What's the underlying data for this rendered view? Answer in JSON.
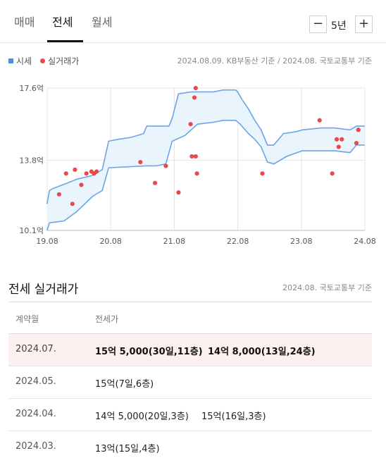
{
  "tabs": [
    {
      "label": "매매",
      "active": false
    },
    {
      "label": "전세",
      "active": true
    },
    {
      "label": "월세",
      "active": false
    }
  ],
  "period": {
    "minus": "−",
    "value": "5년",
    "plus": "+"
  },
  "legend": {
    "market": "시세",
    "actual": "실거래가"
  },
  "chart_source": "2024.08.09. KB부동산 기준 / 2024.08. 국토교통부 기준",
  "colors": {
    "band_line": "#6aa5e8",
    "band_fill": "#eaf4fc",
    "dot": "#e84a4a",
    "highlight_row": "#fdf0f0"
  },
  "chart_data": {
    "type": "line",
    "y_ticks": [
      "17.6억",
      "13.8억",
      "10.1억"
    ],
    "y_tick_values": [
      17.6,
      13.8,
      10.1
    ],
    "ylim": [
      10.1,
      17.6
    ],
    "x_ticks": [
      "19.08",
      "20.08",
      "21.08",
      "22.08",
      "23.08",
      "24.08"
    ],
    "x_tick_values": [
      2019.583,
      2020.583,
      2021.583,
      2022.583,
      2023.583,
      2024.583
    ],
    "xlim": [
      2019.583,
      2024.583
    ],
    "series": [
      {
        "role": "upper",
        "points": [
          [
            2019.58,
            11.5
          ],
          [
            2019.62,
            12.2
          ],
          [
            2019.67,
            12.3
          ],
          [
            2019.9,
            12.6
          ],
          [
            2020.05,
            12.8
          ],
          [
            2020.3,
            13.0
          ],
          [
            2020.45,
            13.3
          ],
          [
            2020.55,
            14.8
          ],
          [
            2020.7,
            14.9
          ],
          [
            2020.9,
            15.0
          ],
          [
            2021.1,
            15.2
          ],
          [
            2021.15,
            15.6
          ],
          [
            2021.5,
            15.6
          ],
          [
            2021.55,
            16.0
          ],
          [
            2021.65,
            17.3
          ],
          [
            2021.85,
            17.4
          ],
          [
            2022.0,
            17.4
          ],
          [
            2022.2,
            17.4
          ],
          [
            2022.35,
            17.5
          ],
          [
            2022.55,
            17.5
          ],
          [
            2022.58,
            17.4
          ],
          [
            2022.65,
            17.0
          ],
          [
            2022.75,
            16.5
          ],
          [
            2022.85,
            15.9
          ],
          [
            2022.95,
            15.4
          ],
          [
            2023.05,
            14.6
          ],
          [
            2023.15,
            14.6
          ],
          [
            2023.3,
            15.2
          ],
          [
            2023.5,
            15.3
          ],
          [
            2023.6,
            15.4
          ],
          [
            2023.9,
            15.5
          ],
          [
            2024.1,
            15.5
          ],
          [
            2024.35,
            15.4
          ],
          [
            2024.45,
            15.6
          ],
          [
            2024.58,
            15.6
          ]
        ]
      },
      {
        "role": "lower",
        "points": [
          [
            2019.58,
            10.1
          ],
          [
            2019.62,
            10.5
          ],
          [
            2019.85,
            10.6
          ],
          [
            2020.05,
            11.1
          ],
          [
            2020.3,
            11.9
          ],
          [
            2020.45,
            12.2
          ],
          [
            2020.55,
            13.4
          ],
          [
            2021.15,
            13.5
          ],
          [
            2021.3,
            13.5
          ],
          [
            2021.45,
            13.6
          ],
          [
            2021.55,
            14.8
          ],
          [
            2021.75,
            15.1
          ],
          [
            2021.95,
            15.7
          ],
          [
            2022.2,
            15.8
          ],
          [
            2022.35,
            15.9
          ],
          [
            2022.55,
            15.9
          ],
          [
            2022.62,
            15.7
          ],
          [
            2022.75,
            15.2
          ],
          [
            2022.85,
            14.9
          ],
          [
            2022.95,
            14.5
          ],
          [
            2023.05,
            13.7
          ],
          [
            2023.15,
            13.6
          ],
          [
            2023.35,
            14.0
          ],
          [
            2023.6,
            14.3
          ],
          [
            2024.1,
            14.3
          ],
          [
            2024.35,
            14.2
          ],
          [
            2024.45,
            14.6
          ],
          [
            2024.58,
            14.6
          ]
        ]
      }
    ],
    "scatter": [
      [
        2019.77,
        12.0
      ],
      [
        2019.88,
        13.1
      ],
      [
        2019.98,
        11.5
      ],
      [
        2020.02,
        13.3
      ],
      [
        2020.12,
        12.5
      ],
      [
        2020.2,
        13.1
      ],
      [
        2020.28,
        13.2
      ],
      [
        2020.32,
        13.1
      ],
      [
        2020.36,
        13.2
      ],
      [
        2021.05,
        13.7
      ],
      [
        2021.28,
        12.6
      ],
      [
        2021.45,
        13.5
      ],
      [
        2021.65,
        12.1
      ],
      [
        2021.84,
        15.7
      ],
      [
        2021.86,
        14.0
      ],
      [
        2021.92,
        14.0
      ],
      [
        2021.9,
        17.1
      ],
      [
        2021.92,
        17.6
      ],
      [
        2021.94,
        13.1
      ],
      [
        2022.97,
        13.1
      ],
      [
        2023.87,
        15.9
      ],
      [
        2024.07,
        13.1
      ],
      [
        2024.14,
        14.9
      ],
      [
        2024.17,
        14.5
      ],
      [
        2024.22,
        14.9
      ],
      [
        2024.45,
        14.7
      ],
      [
        2024.48,
        15.4
      ]
    ]
  },
  "table": {
    "title": "전세 실거래가",
    "source": "2024.08. 국토교통부 기준",
    "headers": [
      "계약월",
      "전세가"
    ],
    "rows": [
      {
        "month": "2024.07.",
        "deals": [
          "15억 5,000(30일,11층)",
          "14억 8,000(13일,24층)"
        ],
        "highlight": true
      },
      {
        "month": "2024.05.",
        "deals": [
          "15억(7일,6층)"
        ],
        "highlight": false
      },
      {
        "month": "2024.04.",
        "deals": [
          "14억 5,000(20일,3층)",
          "15억(16일,3층)"
        ],
        "highlight": false
      },
      {
        "month": "2024.03.",
        "deals": [
          "13억(15일,4층)"
        ],
        "highlight": false
      }
    ]
  }
}
